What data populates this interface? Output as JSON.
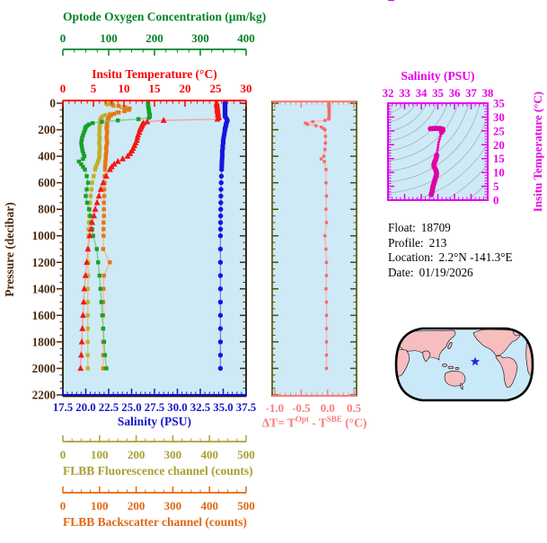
{
  "info_panel": {
    "rows": [
      {
        "label": "Float:",
        "value": "18709"
      },
      {
        "label": "Profile:",
        "value": "213"
      },
      {
        "label": "Location:",
        "value": "2.2°N  -141.3°E"
      },
      {
        "label": "Date:",
        "value": "01/19/2026"
      }
    ]
  },
  "chart_data": [
    {
      "id": "profile-plot",
      "type": "line",
      "plot_bg": "#cdeaf6",
      "frame_color": "#241403",
      "pressure_axis": {
        "title": "Pressure (decibar)",
        "range": [
          0,
          2200
        ],
        "major": 200,
        "minor": 50,
        "tick_labels": [
          "0",
          "200",
          "400",
          "600",
          "800",
          "1000",
          "1200",
          "1400",
          "1600",
          "1800",
          "2000",
          "2200"
        ],
        "color": "#4a2a10"
      },
      "pressures": [
        0,
        10,
        20,
        30,
        40,
        50,
        60,
        70,
        80,
        90,
        100,
        110,
        120,
        130,
        140,
        150,
        160,
        170,
        180,
        190,
        200,
        220,
        240,
        260,
        280,
        300,
        320,
        340,
        360,
        380,
        400,
        420,
        440,
        460,
        480,
        500,
        550,
        600,
        650,
        700,
        750,
        800,
        850,
        900,
        950,
        1000,
        1100,
        1200,
        1300,
        1400,
        1500,
        1600,
        1700,
        1800,
        1900,
        2000
      ],
      "series": [
        {
          "name": "oxygen",
          "axis_title": "Optode Oxygen Concentration (μm/kg)",
          "range": [
            0,
            400
          ],
          "major": 100,
          "minor": 25,
          "tick_labels": [
            "0",
            "100",
            "200",
            "300",
            "400"
          ],
          "axis_color": "#008426",
          "marker_color": "#18a028",
          "line_color": "#7ccc84",
          "marker": "square",
          "values": [
            186,
            186,
            186,
            187,
            187,
            188,
            188,
            188,
            189,
            190,
            190,
            188,
            165,
            120,
            85,
            65,
            57,
            53,
            50,
            49,
            48,
            46,
            44,
            42,
            41,
            40,
            41,
            42,
            43,
            45,
            47,
            44,
            35,
            40,
            44,
            48,
            52,
            55,
            52,
            50,
            53,
            57,
            60,
            62,
            64,
            66,
            74,
            77,
            80,
            82,
            84,
            86,
            88,
            90,
            92,
            95
          ]
        },
        {
          "name": "temperature",
          "axis_title": "Insitu Temperature (°C)",
          "range": [
            0,
            30
          ],
          "major": 5,
          "minor": 1,
          "tick_labels": [
            "0",
            "5",
            "10",
            "15",
            "20",
            "25",
            "30"
          ],
          "axis_color": "#fb0007",
          "marker_color": "#f81515",
          "line_color": "#ff9c9c",
          "marker": "triangle",
          "values": [
            25.2,
            25.2,
            25.2,
            25.3,
            25.3,
            25.3,
            25.3,
            25.4,
            25.4,
            25.4,
            25.5,
            25.5,
            25.3,
            16.5,
            13.8,
            13.2,
            13.0,
            12.9,
            12.8,
            12.7,
            12.6,
            12.5,
            12.3,
            12.2,
            12.1,
            11.9,
            11.7,
            11.5,
            11.3,
            11.0,
            10.6,
            9.8,
            9.0,
            8.4,
            8.0,
            7.7,
            7.1,
            6.6,
            6.2,
            5.9,
            5.6,
            5.3,
            5.1,
            4.8,
            4.6,
            4.4,
            4.1,
            3.9,
            3.7,
            3.5,
            3.4,
            3.3,
            3.2,
            3.1,
            3.0,
            2.9
          ]
        },
        {
          "name": "salinity",
          "axis_title": "Salinity (PSU)",
          "range": [
            17.5,
            37.5
          ],
          "major": 2.5,
          "minor": 0.5,
          "tick_labels": [
            "17.5",
            "20.0",
            "22.5",
            "25.0",
            "27.5",
            "30.0",
            "32.5",
            "35.0",
            "37.5"
          ],
          "axis_color": "#1414cc",
          "marker_color": "#1515dd",
          "line_color": "#7f7fe8",
          "marker": "circle",
          "values": [
            35.2,
            35.2,
            35.2,
            35.2,
            35.2,
            35.2,
            35.2,
            35.2,
            35.2,
            35.2,
            35.2,
            35.3,
            35.4,
            35.45,
            35.4,
            35.35,
            35.3,
            35.3,
            35.25,
            35.2,
            35.2,
            35.15,
            35.1,
            35.05,
            35.0,
            35.0,
            34.95,
            34.95,
            34.9,
            34.9,
            34.9,
            34.88,
            34.86,
            34.85,
            34.84,
            34.83,
            34.8,
            34.78,
            34.76,
            34.75,
            34.74,
            34.73,
            34.72,
            34.71,
            34.71,
            34.7,
            34.7,
            34.7,
            34.7,
            34.7,
            34.7,
            34.7,
            34.7,
            34.7,
            34.7,
            34.7
          ]
        },
        {
          "name": "fluorescence",
          "axis_title": "FLBB Fluorescence channel (counts)",
          "range": [
            0,
            500
          ],
          "major": 100,
          "minor": 25,
          "tick_labels": [
            "0",
            "100",
            "200",
            "300",
            "400",
            "500"
          ],
          "axis_color": "#a8a032",
          "marker_color": "#c0b028",
          "line_color": "#d8ca74",
          "marker": "square",
          "values": [
            118,
            122,
            138,
            160,
            173,
            175,
            168,
            148,
            128,
            115,
            108,
            105,
            103,
            102,
            102,
            101,
            101,
            101,
            100,
            100,
            100,
            100,
            99,
            101,
            100,
            99,
            100,
            101,
            100,
            99,
            100,
            98,
            96,
            93,
            90,
            88,
            84,
            80,
            78,
            76,
            74,
            73,
            72,
            71,
            70,
            70,
            69,
            69,
            69,
            68,
            68,
            68,
            68,
            68,
            68,
            68
          ]
        },
        {
          "name": "backscatter",
          "axis_title": "FLBB Backscatter channel (counts)",
          "range": [
            0,
            500
          ],
          "major": 100,
          "minor": 25,
          "tick_labels": [
            "0",
            "100",
            "200",
            "300",
            "400",
            "500"
          ],
          "axis_color": "#e06812",
          "marker_color": "#e87616",
          "line_color": "#f4b97c",
          "marker": "square",
          "values": [
            132,
            136,
            152,
            170,
            182,
            180,
            168,
            152,
            140,
            132,
            127,
            125,
            123,
            122,
            121,
            120,
            120,
            121,
            120,
            119,
            120,
            121,
            120,
            119,
            120,
            121,
            119,
            118,
            119,
            118,
            117,
            117,
            116,
            116,
            115,
            115,
            114,
            114,
            113,
            113,
            112,
            112,
            112,
            111,
            111,
            111,
            110,
            128,
            112,
            111,
            110,
            110,
            110,
            110,
            110,
            110
          ]
        }
      ]
    },
    {
      "id": "delta-t-plot",
      "type": "line",
      "plot_bg": "#cdeaf6",
      "frame_color": "#4f4f08",
      "x_axis": {
        "title_parts": {
          "pre": "ΔT= T",
          "sup1": "Opt",
          "mid": " - T",
          "sup2": "SBE",
          "post": " (°C)"
        },
        "range": [
          -1.05,
          0.55
        ],
        "major": 0.5,
        "minor": 0.1,
        "tick_labels": [
          "-1.0",
          "-0.5",
          "0.0",
          "0.5"
        ],
        "color": "#f87c7c"
      },
      "marker_color": "#f86868",
      "line_color": "#ffaaaa",
      "pressures": [
        0,
        10,
        20,
        30,
        40,
        50,
        60,
        70,
        80,
        90,
        100,
        110,
        120,
        130,
        140,
        150,
        160,
        170,
        180,
        190,
        200,
        250,
        300,
        350,
        400,
        420,
        440,
        500,
        600,
        700,
        800,
        900,
        1000,
        1100,
        1200,
        1300,
        1400,
        1500,
        1600,
        1700,
        1800,
        1900,
        2000
      ],
      "values": [
        0.03,
        0.03,
        0.03,
        0.03,
        0.03,
        0.03,
        0.03,
        0.03,
        0.03,
        0.03,
        0.03,
        0.03,
        0.02,
        -0.05,
        -0.28,
        -0.42,
        -0.38,
        -0.22,
        -0.12,
        -0.08,
        -0.05,
        -0.04,
        -0.04,
        -0.05,
        -0.07,
        -0.12,
        -0.06,
        -0.03,
        -0.03,
        -0.02,
        -0.03,
        -0.02,
        -0.05,
        -0.03,
        -0.02,
        -0.02,
        -0.03,
        -0.02,
        -0.02,
        -0.02,
        -0.02,
        -0.02,
        -0.02
      ]
    },
    {
      "id": "ts-plot",
      "type": "scatter",
      "plot_bg": "#cdeaf6",
      "contour_color": "#a0b4bc",
      "x_axis": {
        "title": "Salinity (PSU)",
        "range": [
          32,
          38
        ],
        "major": 1,
        "minor": 0.25,
        "tick_labels": [
          "32",
          "33",
          "34",
          "35",
          "36",
          "37",
          "38"
        ],
        "color": "#e800e8"
      },
      "y_axis": {
        "title": "Insitu Temperature (°C)",
        "range": [
          0,
          35
        ],
        "major": 5,
        "minor": 1,
        "tick_labels": [
          "0",
          "5",
          "10",
          "15",
          "20",
          "25",
          "30",
          "35"
        ],
        "color": "#e800e8"
      },
      "line_color": "#ff55cc",
      "marker_color": "#e100a8",
      "points": [
        [
          34.55,
          25.8,
          0
        ],
        [
          34.7,
          25.85,
          0
        ],
        [
          34.85,
          25.9,
          0
        ],
        [
          35.0,
          25.9,
          0
        ],
        [
          35.15,
          25.85,
          0
        ],
        [
          35.28,
          25.7,
          0
        ],
        [
          35.3,
          25.2,
          0
        ],
        [
          35.22,
          24.5,
          0
        ],
        [
          35.18,
          23.8,
          1
        ],
        [
          35.15,
          23.0,
          1
        ],
        [
          35.1,
          22.0,
          1
        ],
        [
          35.05,
          21.0,
          1
        ],
        [
          35.02,
          20.0,
          1
        ],
        [
          35.0,
          19.0,
          1
        ],
        [
          34.97,
          18.0,
          1
        ],
        [
          34.95,
          17.0,
          1
        ],
        [
          34.93,
          16.2,
          0
        ],
        [
          34.9,
          15.3,
          0
        ],
        [
          34.85,
          14.4,
          0
        ],
        [
          34.8,
          13.6,
          0
        ],
        [
          34.76,
          12.8,
          0
        ],
        [
          34.78,
          12.0,
          0
        ],
        [
          34.85,
          11.2,
          0
        ],
        [
          34.9,
          10.4,
          0
        ],
        [
          34.92,
          9.6,
          0
        ],
        [
          34.9,
          8.8,
          0
        ],
        [
          34.86,
          8.0,
          0
        ],
        [
          34.82,
          7.2,
          0
        ],
        [
          34.78,
          6.4,
          0
        ],
        [
          34.74,
          5.6,
          0
        ],
        [
          34.7,
          4.8,
          0
        ],
        [
          34.68,
          4.0,
          0
        ],
        [
          34.66,
          3.3,
          0
        ],
        [
          34.63,
          2.6,
          0
        ],
        [
          34.6,
          2.0,
          0
        ]
      ]
    }
  ],
  "map": {
    "ocean_color": "#c9e9f8",
    "land_color": "#f6bebe",
    "outline_color": "#000000",
    "star_color": "#2424e0"
  }
}
